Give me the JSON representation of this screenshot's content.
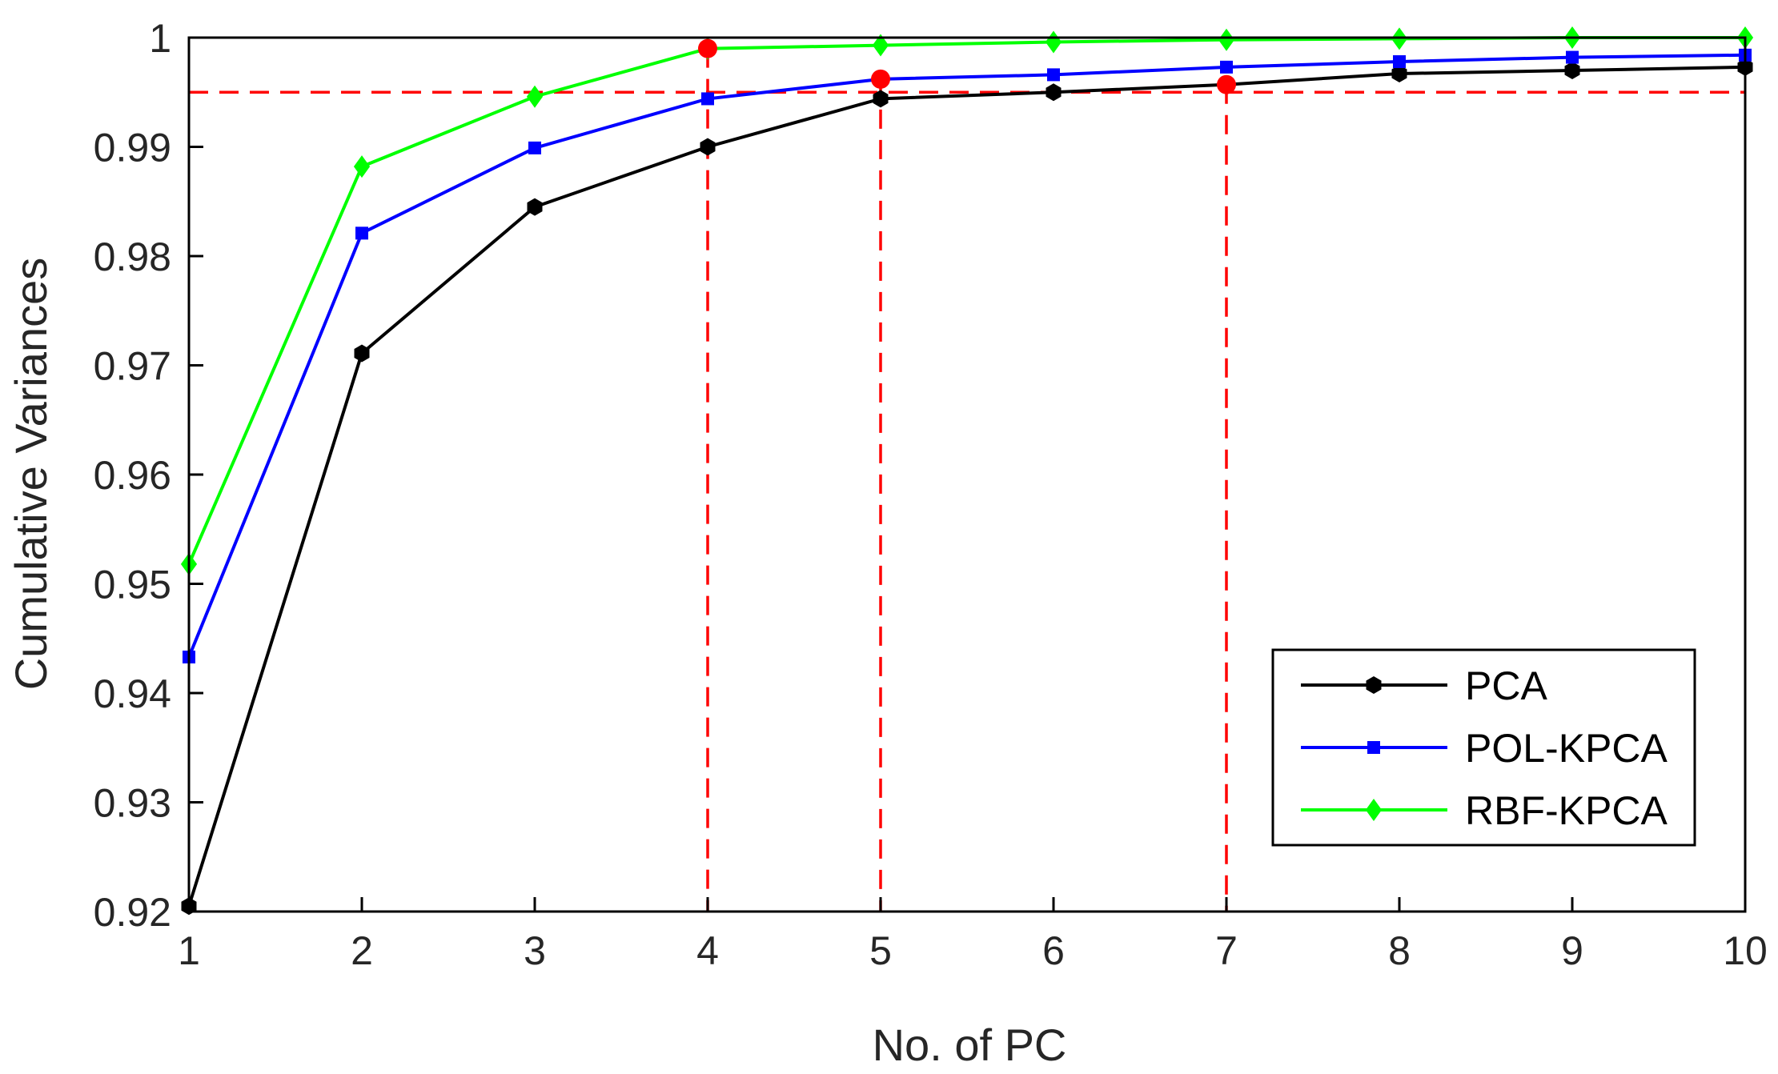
{
  "chart_data": {
    "type": "line",
    "xlabel": "No. of PC",
    "ylabel": "Cumulative Variances",
    "x": [
      1,
      2,
      3,
      4,
      5,
      6,
      7,
      8,
      9,
      10
    ],
    "xlim": [
      1,
      10
    ],
    "ylim": [
      0.92,
      1.0
    ],
    "xticks": [
      1,
      2,
      3,
      4,
      5,
      6,
      7,
      8,
      9,
      10
    ],
    "xtick_labels": [
      "1",
      "2",
      "3",
      "4",
      "5",
      "6",
      "7",
      "8",
      "9",
      "10"
    ],
    "yticks": [
      0.92,
      0.93,
      0.94,
      0.95,
      0.96,
      0.97,
      0.98,
      0.99,
      1.0
    ],
    "ytick_labels": [
      "0.92",
      "0.93",
      "0.94",
      "0.95",
      "0.96",
      "0.97",
      "0.98",
      "0.99",
      "1"
    ],
    "grid": false,
    "legend_position": "bottom-right",
    "series": [
      {
        "name": "PCA",
        "color": "#000000",
        "marker": "hexagon",
        "values": [
          0.9205,
          0.9711,
          0.9845,
          0.99,
          0.9944,
          0.995,
          0.9957,
          0.9967,
          0.997,
          0.9973
        ]
      },
      {
        "name": "POL-KPCA",
        "color": "#0000ff",
        "marker": "square",
        "values": [
          0.9433,
          0.9821,
          0.9899,
          0.9944,
          0.9962,
          0.9966,
          0.9973,
          0.9978,
          0.9982,
          0.9984
        ]
      },
      {
        "name": "RBF-KPCA",
        "color": "#00ff00",
        "marker": "diamond",
        "values": [
          0.9518,
          0.9882,
          0.9946,
          0.999,
          0.9993,
          0.9996,
          0.9998,
          0.9999,
          1.0,
          1.0
        ]
      }
    ],
    "threshold": {
      "value": 0.995,
      "color": "#ff0000",
      "style": "dashed"
    },
    "vertical_markers": [
      {
        "x": 4,
        "y": 0.999,
        "color": "#ff0000"
      },
      {
        "x": 5,
        "y": 0.9962,
        "color": "#ff0000"
      },
      {
        "x": 7,
        "y": 0.9957,
        "color": "#ff0000"
      }
    ]
  }
}
